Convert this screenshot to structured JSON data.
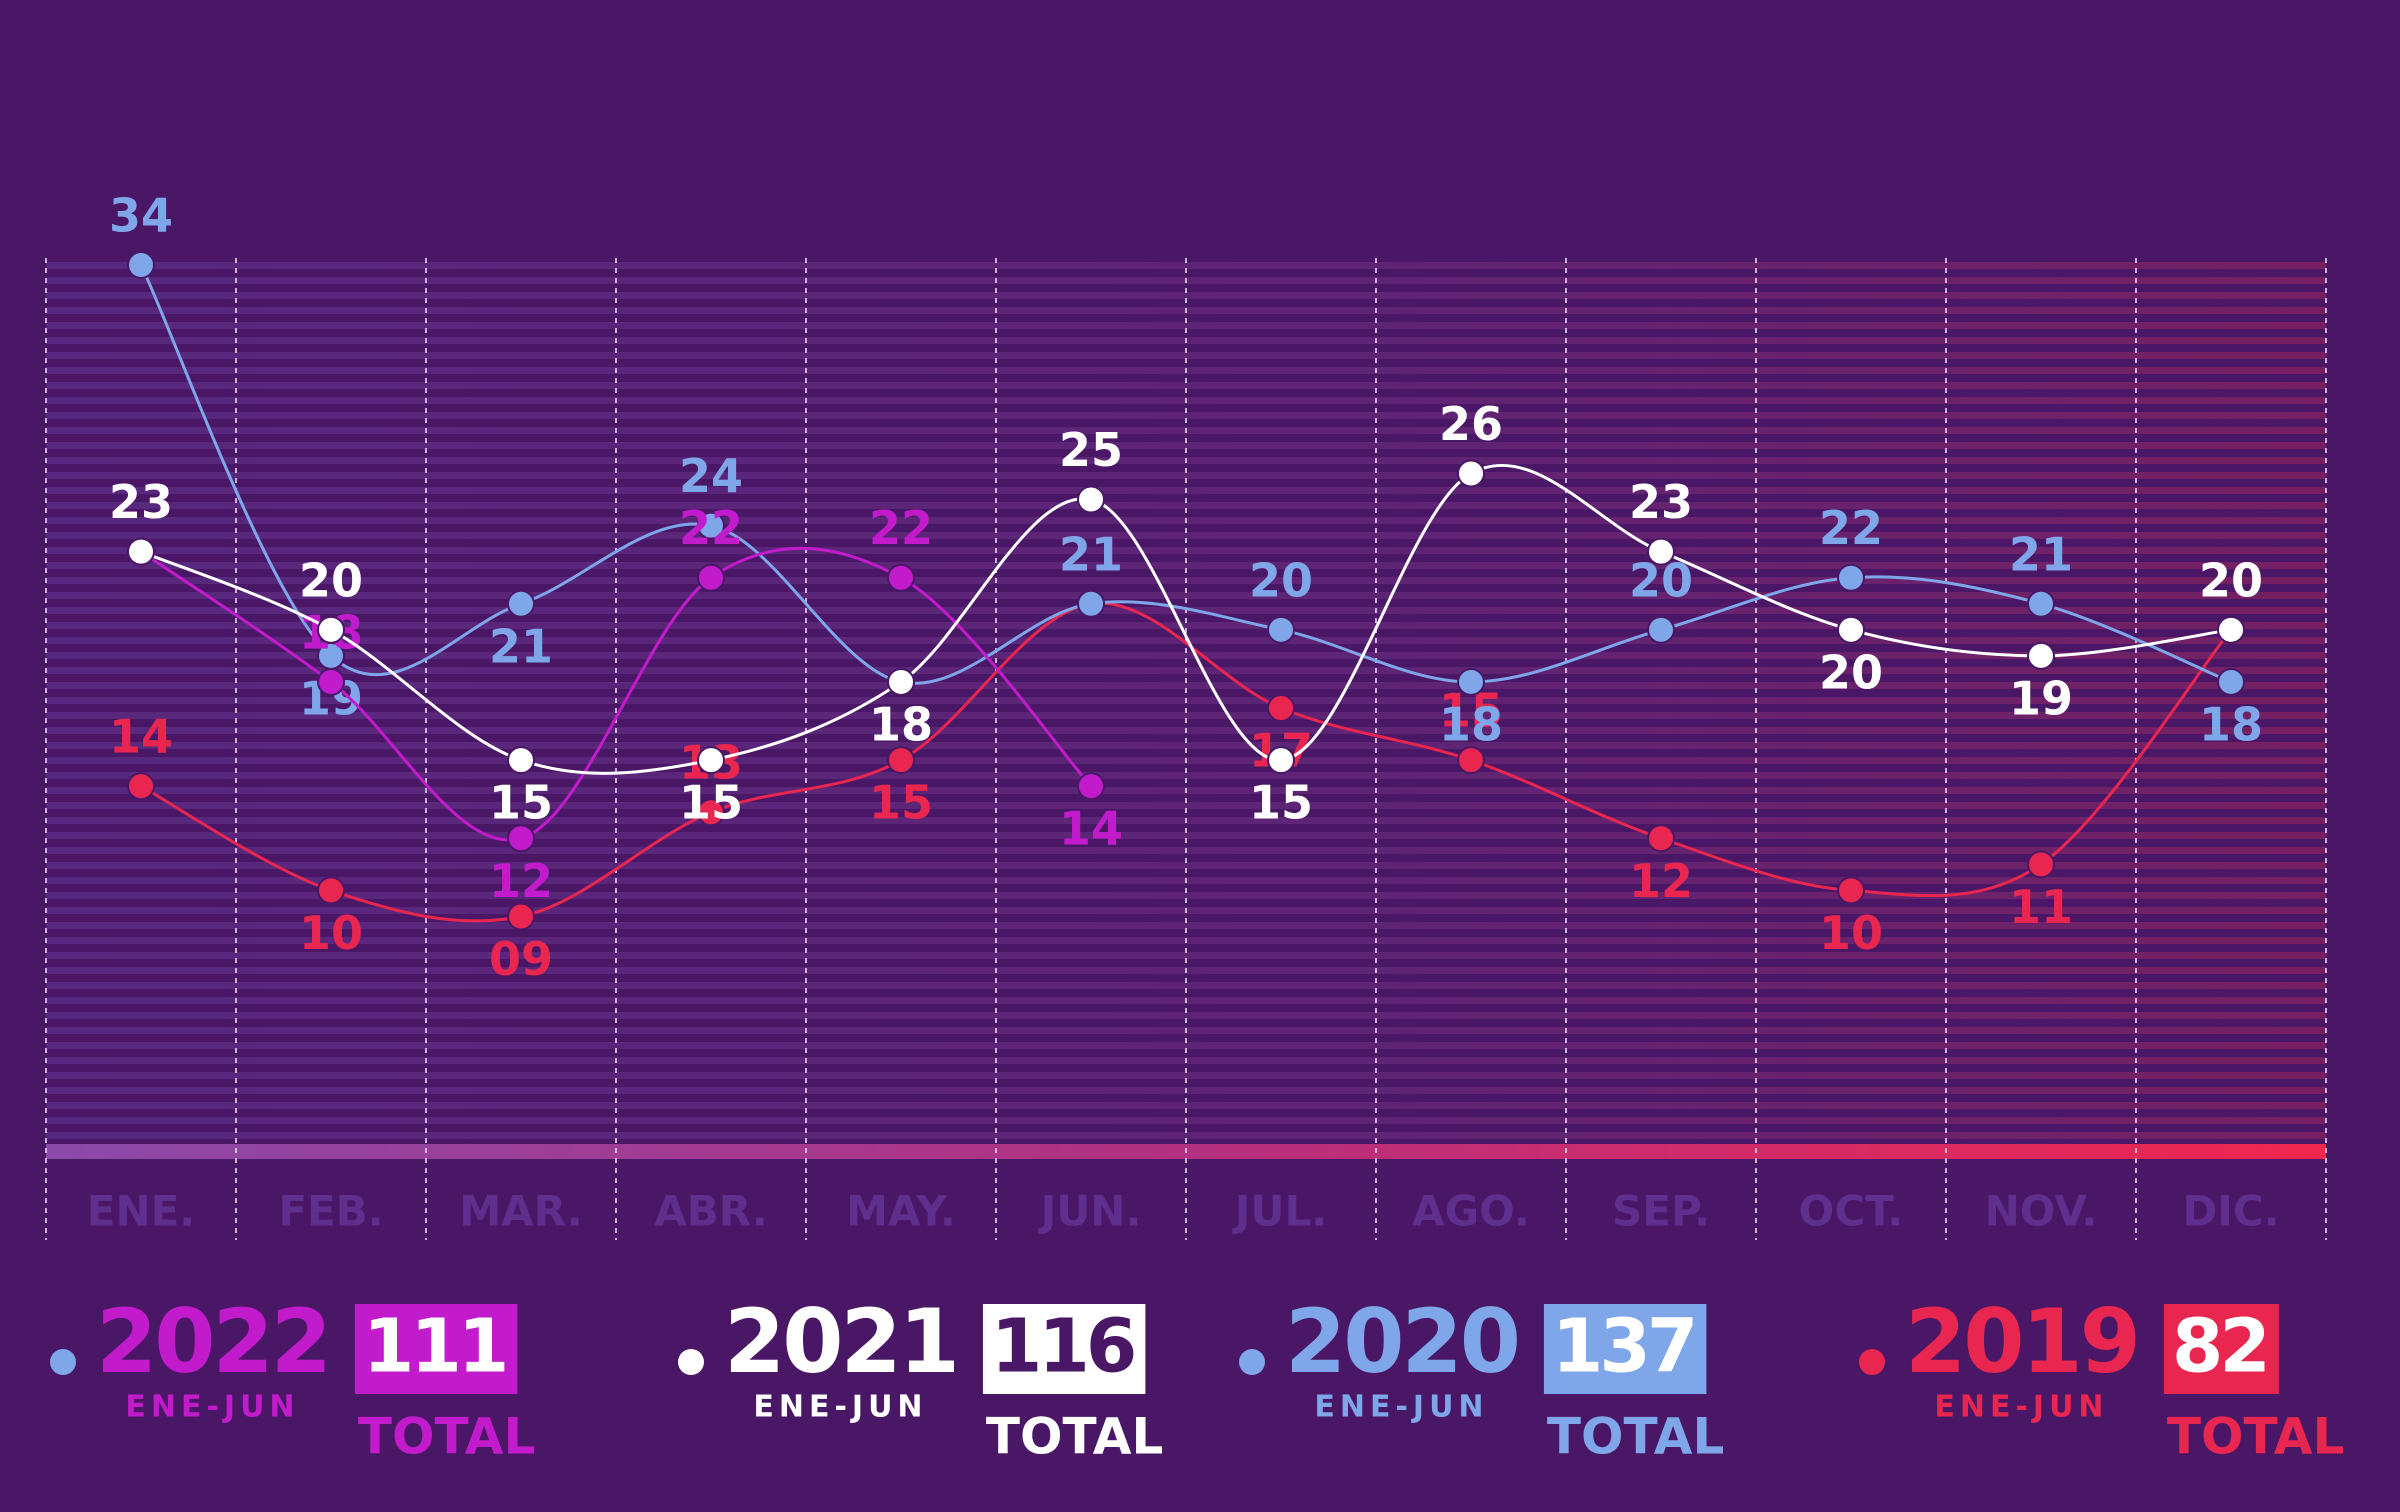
{
  "chart_data": {
    "type": "line",
    "categories": [
      "ENE.",
      "FEB.",
      "MAR.",
      "ABR.",
      "MAY.",
      "JUN.",
      "JUL.",
      "AGO.",
      "SEP.",
      "OCT.",
      "NOV.",
      "DIC."
    ],
    "ylim": [
      0,
      34
    ],
    "legend_period": "ENE-JUN",
    "total_label": "TOTAL",
    "series": [
      {
        "name": "2022",
        "color": "#c21bcc",
        "total": 111,
        "values": [
          23,
          18,
          12,
          22,
          22,
          14,
          null,
          null,
          null,
          null,
          null,
          null
        ]
      },
      {
        "name": "2021",
        "color": "#ffffff",
        "total": 116,
        "values": [
          23,
          20,
          15,
          15,
          18,
          25,
          15,
          26,
          23,
          20,
          19,
          20
        ]
      },
      {
        "name": "2020",
        "color": "#7ea6e8",
        "total": 137,
        "values": [
          34,
          19,
          21,
          24,
          18,
          21,
          20,
          18,
          20,
          22,
          21,
          18
        ]
      },
      {
        "name": "2019",
        "color": "#e8264f",
        "total": 82,
        "values": [
          14,
          10,
          9,
          13,
          15,
          21,
          17,
          15,
          12,
          10,
          11,
          20
        ],
        "value_labels": [
          "14",
          "10",
          "09",
          "13",
          "15",
          "21",
          "17",
          "15",
          "12",
          "10",
          "11",
          "20"
        ]
      }
    ]
  }
}
